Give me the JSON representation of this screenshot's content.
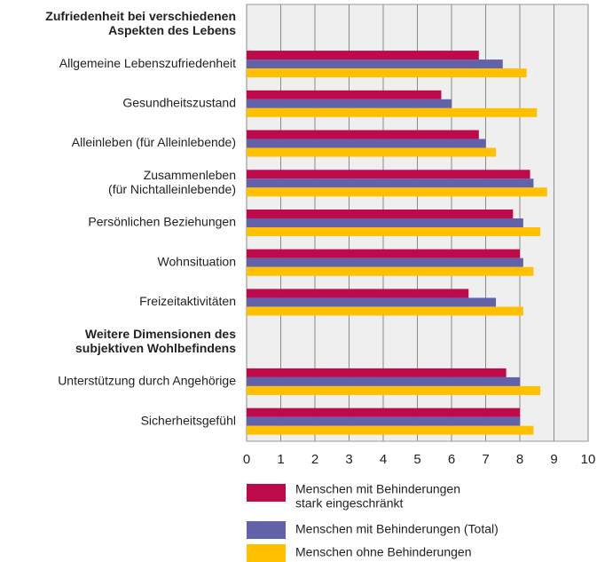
{
  "chart_data": {
    "type": "bar",
    "orientation": "horizontal",
    "categories": [
      [
        "Zufriedenheit bei verschiedenen",
        "Aspekten des Lebens"
      ],
      "Allgemeine Lebenszufriedenheit",
      "Gesundheitszustand",
      "Alleinleben (für Alleinlebende)",
      [
        "Zusammenleben",
        "(für Nichtalleinlebende)"
      ],
      "Persönlichen Beziehungen",
      "Wohnsituation",
      "Freizeitaktivitäten",
      [
        "Weitere Dimensionen des",
        "subjektiven Wohlbefindens"
      ],
      "Unterstützung durch Angehörige",
      "Sicherheitsgefühl"
    ],
    "series": [
      {
        "name": [
          "Menschen mit Behinderungen",
          "stark eingeschränkt"
        ],
        "color": "#be0a4b",
        "values": [
          null,
          6.8,
          5.7,
          6.8,
          8.3,
          7.8,
          8.0,
          6.5,
          null,
          7.6,
          8.0
        ]
      },
      {
        "name": [
          "Menschen mit Behinderungen (Total)"
        ],
        "color": "#6262aa",
        "values": [
          null,
          7.5,
          6.0,
          7.0,
          8.4,
          8.1,
          8.1,
          7.3,
          null,
          8.0,
          8.0
        ]
      },
      {
        "name": [
          "Menschen ohne Behinderungen"
        ],
        "color": "#ffc000",
        "values": [
          null,
          8.2,
          8.5,
          7.3,
          8.8,
          8.6,
          8.4,
          8.1,
          null,
          8.6,
          8.4
        ]
      }
    ],
    "xlim": [
      0,
      10
    ],
    "xticks": [
      0,
      1,
      2,
      3,
      4,
      5,
      6,
      7,
      8,
      9,
      10
    ],
    "grid": true
  }
}
